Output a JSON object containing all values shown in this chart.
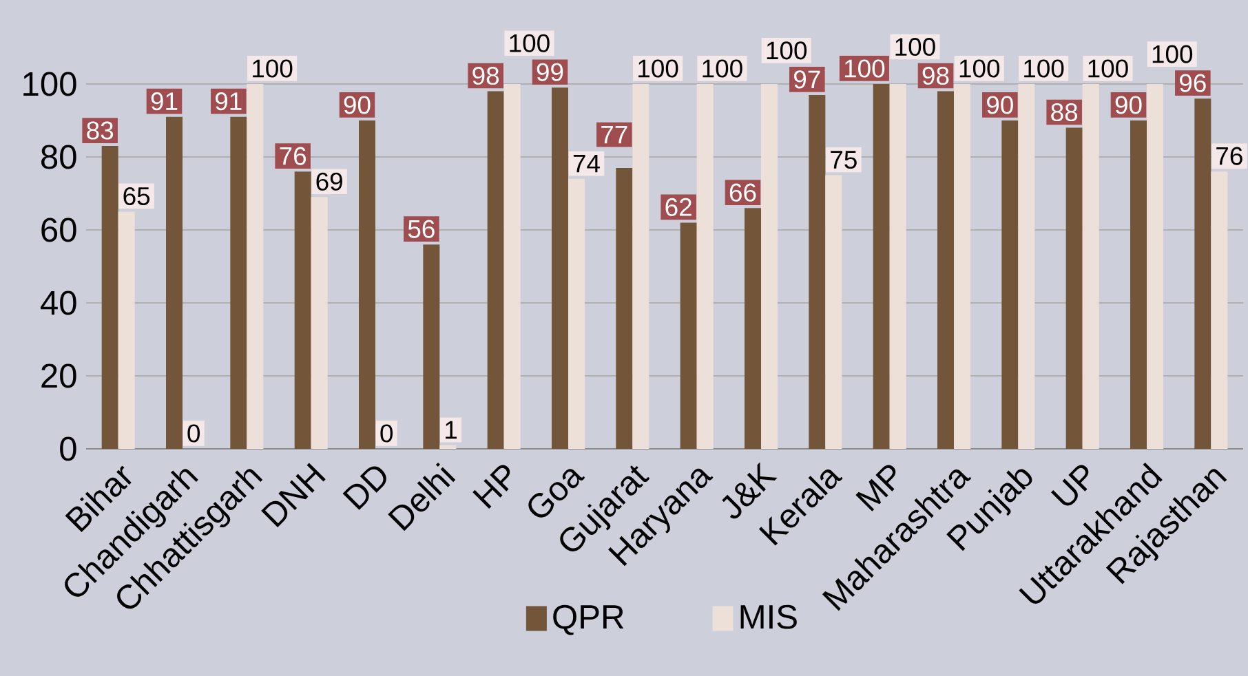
{
  "chart_data": {
    "type": "bar",
    "categories": [
      "Bihar",
      "Chandigarh",
      "Chhattisgarh",
      "DNH",
      "DD",
      "Delhi",
      "HP",
      "Goa",
      "Gujarat",
      "Haryana",
      "J&K",
      "Kerala",
      "MP",
      "Maharashtra",
      "Punjab",
      "UP",
      "Uttarakhand",
      "Rajasthan"
    ],
    "series": [
      {
        "name": "QPR",
        "color": "#73553a",
        "values": [
          83,
          91,
          91,
          76,
          90,
          56,
          98,
          99,
          77,
          62,
          66,
          97,
          100,
          98,
          90,
          88,
          90,
          96
        ]
      },
      {
        "name": "MIS",
        "color": "#ece0d8",
        "values": [
          65,
          0,
          100,
          69,
          0,
          1,
          100,
          74,
          100,
          100,
          100,
          75,
          100,
          100,
          100,
          100,
          100,
          76
        ]
      }
    ],
    "ylim": [
      0,
      100
    ],
    "yticks": [
      0,
      20,
      40,
      60,
      80,
      100
    ],
    "grid": "y",
    "legend": "bottom",
    "data_labels": true
  }
}
